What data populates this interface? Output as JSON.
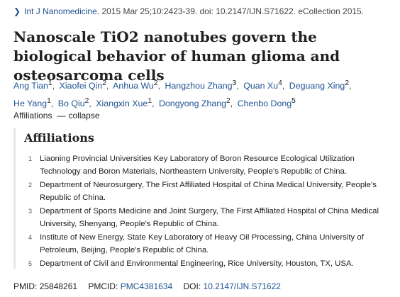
{
  "citation": {
    "journal": "Int J Nanomedicine",
    "rest": ". 2015 Mar 25;10:2423-39. doi: 10.2147/IJN.S71622. eCollection 2015."
  },
  "title": "Nanoscale TiO2 nanotubes govern the biological behavior of human glioma and osteosarcoma cells",
  "authors": [
    {
      "name": "Ang Tian",
      "aff": "1"
    },
    {
      "name": "Xiaofei Qin",
      "aff": "2"
    },
    {
      "name": "Anhua Wu",
      "aff": "2"
    },
    {
      "name": "Hangzhou Zhang",
      "aff": "3"
    },
    {
      "name": "Quan Xu",
      "aff": "4"
    },
    {
      "name": "Deguang Xing",
      "aff": "2"
    },
    {
      "name": "He Yang",
      "aff": "1"
    },
    {
      "name": "Bo Qiu",
      "aff": "2"
    },
    {
      "name": "Xiangxin Xue",
      "aff": "1"
    },
    {
      "name": "Dongyong Zhang",
      "aff": "2"
    },
    {
      "name": "Chenbo Dong",
      "aff": "5"
    }
  ],
  "affiliations_toggle": {
    "label": "Affiliations",
    "dash": "—",
    "action": "collapse"
  },
  "affiliations": {
    "heading": "Affiliations",
    "items": [
      {
        "num": "1",
        "text": "Liaoning Provincial Universities Key Laboratory of Boron Resource Ecological Utilization Technology and Boron Materials, Northeastern University, People's Republic of China."
      },
      {
        "num": "2",
        "text": "Department of Neurosurgery, The First Affiliated Hospital of China Medical University, People's Republic of China."
      },
      {
        "num": "3",
        "text": "Department of Sports Medicine and Joint Surgery, The First Affiliated Hospital of China Medical University, Shenyang, People's Republic of China."
      },
      {
        "num": "4",
        "text": "Institute of New Energy, State Key Laboratory of Heavy Oil Processing, China University of Petroleum, Beijing, People's Republic of China."
      },
      {
        "num": "5",
        "text": "Department of Civil and Environmental Engineering, Rice University, Houston, TX, USA."
      }
    ]
  },
  "identifiers": {
    "pmid_label": "PMID:",
    "pmid": "25848261",
    "pmcid_label": "PMCID:",
    "pmcid": "PMC4381634",
    "doi_label": "DOI:",
    "doi": "10.2147/IJN.S71622"
  }
}
